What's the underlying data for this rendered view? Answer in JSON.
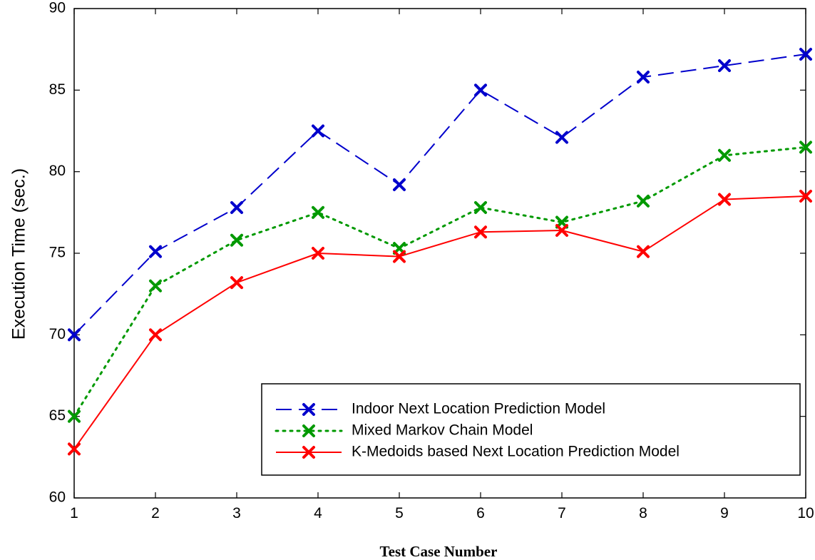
{
  "chart_data": {
    "type": "line",
    "title": "",
    "xlabel": "Test Case Number",
    "ylabel": "Execution Time (sec.)",
    "xlim": [
      1,
      10
    ],
    "ylim": [
      60,
      90
    ],
    "x": [
      1,
      2,
      3,
      4,
      5,
      6,
      7,
      8,
      9,
      10
    ],
    "xticks": [
      1,
      2,
      3,
      4,
      5,
      6,
      7,
      8,
      9,
      10
    ],
    "yticks": [
      60,
      65,
      70,
      75,
      80,
      85,
      90
    ],
    "grid": false,
    "legend_position": "bottom-right",
    "series": [
      {
        "name": "Indoor Next Location Prediction Model",
        "values": [
          70,
          75.1,
          77.8,
          82.5,
          79.2,
          85,
          82.1,
          85.8,
          86.5,
          87.2
        ],
        "color": "#0000cc",
        "line_style": "dashed",
        "marker": "x"
      },
      {
        "name": "Mixed Markov Chain Model",
        "values": [
          65,
          73,
          75.8,
          77.5,
          75.3,
          77.8,
          76.9,
          78.2,
          81,
          81.5
        ],
        "color": "#009900",
        "line_style": "dotted",
        "marker": "x"
      },
      {
        "name": "K-Medoids based Next Location Prediction Model",
        "values": [
          63,
          70,
          73.2,
          75,
          74.8,
          76.3,
          76.4,
          75.1,
          78.3,
          78.5
        ],
        "color": "#ff0000",
        "line_style": "solid",
        "marker": "x"
      }
    ]
  }
}
